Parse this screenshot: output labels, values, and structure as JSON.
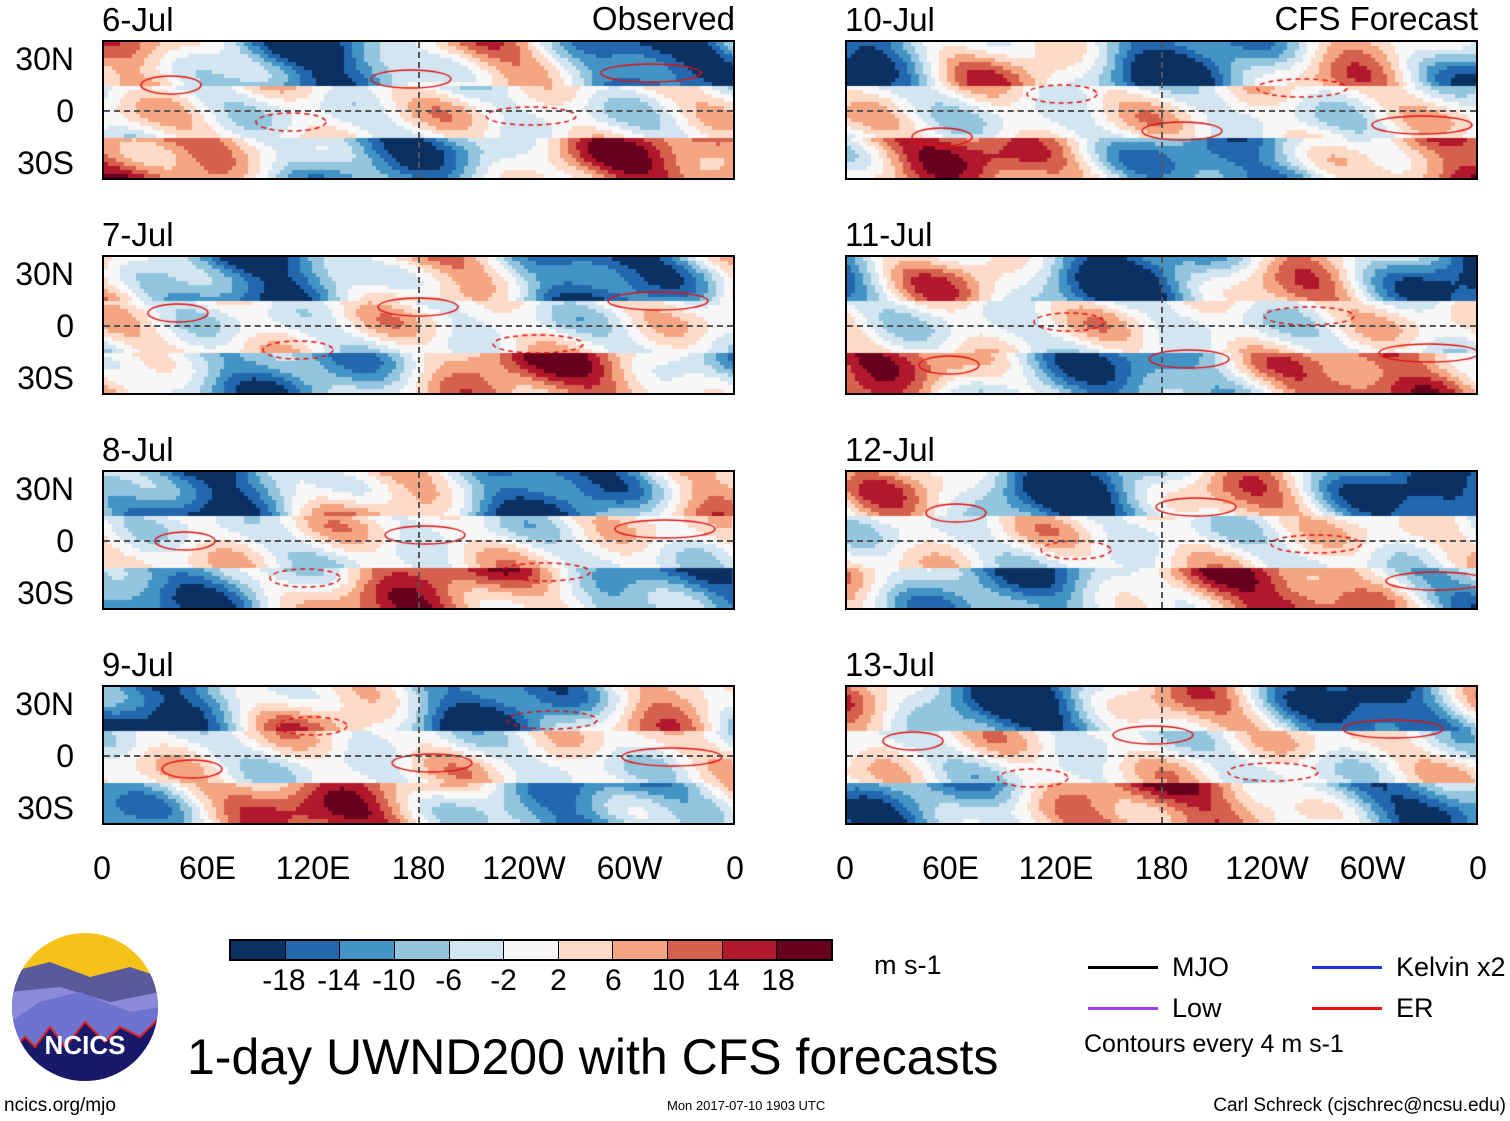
{
  "chart_data": {
    "type": "heatmap",
    "title": "1-day UWND200 with CFS forecasts",
    "units": "m s-1",
    "columns": [
      {
        "label": "Observed",
        "panels": [
          "6-Jul",
          "7-Jul",
          "8-Jul",
          "9-Jul"
        ]
      },
      {
        "label": "CFS Forecast",
        "panels": [
          "10-Jul",
          "11-Jul",
          "12-Jul",
          "13-Jul"
        ]
      }
    ],
    "y_tick_labels": [
      "30N",
      "0",
      "30S"
    ],
    "x_tick_labels": [
      "0",
      "60E",
      "120E",
      "180",
      "120W",
      "60W",
      "0"
    ],
    "colorbar": {
      "levels": [
        "-18",
        "-14",
        "-10",
        "-6",
        "-2",
        "2",
        "6",
        "10",
        "14",
        "18"
      ],
      "colors": [
        "#0a3162",
        "#2368ae",
        "#4394c4",
        "#93c5de",
        "#d2e5f0",
        "#f7f7f7",
        "#fddbc8",
        "#f4a683",
        "#d6604e",
        "#b2182b",
        "#67001f"
      ]
    },
    "legend": [
      {
        "label": "MJO",
        "color": "#000000"
      },
      {
        "label": "Kelvin x2",
        "color": "#2233dd"
      },
      {
        "label": "Low",
        "color": "#a040f0"
      },
      {
        "label": "ER",
        "color": "#ee1111"
      }
    ],
    "contour_note": "Contours every 4 m s-1"
  },
  "footer": {
    "url": "ncics.org/mjo",
    "timestamp": "Mon 2017-07-10 1903 UTC",
    "author": "Carl Schreck (cjschrec@ncsu.edu)",
    "logo_text": "NCICS"
  }
}
